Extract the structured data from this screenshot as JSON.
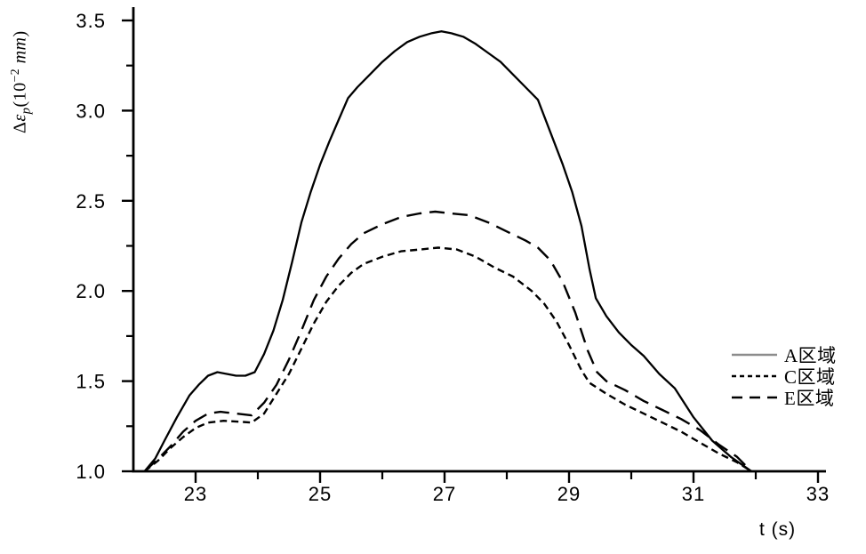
{
  "colors": {
    "background": "#ffffff",
    "axis": "#000000",
    "text": "#000000",
    "curve": "#000000",
    "legend_solid_sample": "#8c8c8c"
  },
  "labels": {
    "y_prefix": "Δ",
    "y_epsilon": "ε",
    "y_subscript": "p",
    "y_open": "(10",
    "y_superscript": "−2",
    "y_space": " ",
    "y_unit": "mm",
    "y_close": ")",
    "y_full": "Δεp(10−2 mm)"
  },
  "chart_data": {
    "type": "line",
    "title": "",
    "xlabel": "t (s)",
    "ylabel": "Δεp(10−2 mm)",
    "xlim": [
      22,
      33
    ],
    "ylim": [
      1.0,
      3.5
    ],
    "grid": false,
    "legend_position": "right-middle",
    "x_ticks_major": [
      23,
      25,
      27,
      29,
      31,
      33
    ],
    "x_tick_labels": [
      "23",
      "25",
      "27",
      "29",
      "31",
      "33"
    ],
    "x_ticks_minor": [
      24,
      26,
      28,
      30,
      32
    ],
    "y_ticks_major": [
      1.0,
      1.5,
      2.0,
      2.5,
      3.0,
      3.5
    ],
    "y_tick_labels": [
      "1.0",
      "1.5",
      "2.0",
      "2.5",
      "3.0",
      "3.5"
    ],
    "y_ticks_minor": [
      1.25,
      1.75,
      2.25,
      2.75,
      3.25
    ],
    "series": [
      {
        "name": "A区域",
        "line_style": "solid",
        "color": "#000000",
        "stroke_width": 2.3,
        "curve_dash": "",
        "legend_dash": "",
        "legend_sample_color": "#8c8c8c",
        "peak": [
          26.9,
          3.44
        ],
        "points": [
          [
            22.18,
            1.0
          ],
          [
            22.35,
            1.07
          ],
          [
            22.5,
            1.17
          ],
          [
            22.7,
            1.3
          ],
          [
            22.9,
            1.42
          ],
          [
            23.05,
            1.48
          ],
          [
            23.2,
            1.53
          ],
          [
            23.35,
            1.55
          ],
          [
            23.5,
            1.54
          ],
          [
            23.65,
            1.53
          ],
          [
            23.8,
            1.53
          ],
          [
            23.95,
            1.55
          ],
          [
            24.1,
            1.65
          ],
          [
            24.25,
            1.78
          ],
          [
            24.4,
            1.95
          ],
          [
            24.55,
            2.16
          ],
          [
            24.7,
            2.38
          ],
          [
            24.85,
            2.55
          ],
          [
            25.0,
            2.7
          ],
          [
            25.15,
            2.83
          ],
          [
            25.3,
            2.95
          ],
          [
            25.45,
            3.07
          ],
          [
            25.6,
            3.13
          ],
          [
            25.8,
            3.2
          ],
          [
            26.0,
            3.27
          ],
          [
            26.2,
            3.33
          ],
          [
            26.4,
            3.38
          ],
          [
            26.6,
            3.41
          ],
          [
            26.8,
            3.43
          ],
          [
            26.95,
            3.44
          ],
          [
            27.1,
            3.43
          ],
          [
            27.3,
            3.41
          ],
          [
            27.5,
            3.37
          ],
          [
            27.7,
            3.32
          ],
          [
            27.9,
            3.27
          ],
          [
            28.1,
            3.2
          ],
          [
            28.3,
            3.13
          ],
          [
            28.5,
            3.06
          ],
          [
            28.7,
            2.88
          ],
          [
            28.9,
            2.7
          ],
          [
            29.05,
            2.55
          ],
          [
            29.2,
            2.36
          ],
          [
            29.33,
            2.12
          ],
          [
            29.43,
            1.96
          ],
          [
            29.6,
            1.86
          ],
          [
            29.8,
            1.77
          ],
          [
            30.0,
            1.7
          ],
          [
            30.2,
            1.64
          ],
          [
            30.45,
            1.54
          ],
          [
            30.7,
            1.46
          ],
          [
            31.0,
            1.3
          ],
          [
            31.3,
            1.17
          ],
          [
            31.6,
            1.08
          ],
          [
            31.93,
            1.0
          ]
        ]
      },
      {
        "name": "C区域",
        "line_style": "short-dash",
        "color": "#000000",
        "stroke_width": 2.4,
        "curve_dash": "8 5",
        "legend_dash": "5 4",
        "legend_sample_color": "#000000",
        "peak": [
          26.9,
          2.24
        ],
        "points": [
          [
            22.18,
            1.0
          ],
          [
            22.4,
            1.06
          ],
          [
            22.6,
            1.13
          ],
          [
            22.8,
            1.19
          ],
          [
            23.0,
            1.24
          ],
          [
            23.2,
            1.27
          ],
          [
            23.45,
            1.28
          ],
          [
            23.7,
            1.275
          ],
          [
            23.9,
            1.27
          ],
          [
            24.1,
            1.32
          ],
          [
            24.3,
            1.43
          ],
          [
            24.5,
            1.54
          ],
          [
            24.7,
            1.68
          ],
          [
            24.9,
            1.82
          ],
          [
            25.1,
            1.94
          ],
          [
            25.3,
            2.03
          ],
          [
            25.5,
            2.1
          ],
          [
            25.7,
            2.15
          ],
          [
            26.0,
            2.19
          ],
          [
            26.3,
            2.22
          ],
          [
            26.6,
            2.23
          ],
          [
            26.9,
            2.24
          ],
          [
            27.2,
            2.23
          ],
          [
            27.5,
            2.19
          ],
          [
            27.8,
            2.13
          ],
          [
            28.1,
            2.08
          ],
          [
            28.4,
            2.0
          ],
          [
            28.6,
            1.93
          ],
          [
            28.8,
            1.83
          ],
          [
            29.0,
            1.7
          ],
          [
            29.2,
            1.56
          ],
          [
            29.33,
            1.49
          ],
          [
            29.6,
            1.43
          ],
          [
            29.9,
            1.37
          ],
          [
            30.2,
            1.32
          ],
          [
            30.5,
            1.27
          ],
          [
            30.8,
            1.22
          ],
          [
            31.1,
            1.16
          ],
          [
            31.4,
            1.1
          ],
          [
            31.7,
            1.05
          ],
          [
            31.93,
            1.0
          ]
        ]
      },
      {
        "name": "E区域",
        "line_style": "long-dash",
        "color": "#000000",
        "stroke_width": 2.4,
        "curve_dash": "17 9",
        "legend_dash": "12 8",
        "legend_sample_color": "#000000",
        "peak": [
          26.85,
          2.44
        ],
        "points": [
          [
            22.18,
            1.0
          ],
          [
            22.4,
            1.07
          ],
          [
            22.6,
            1.14
          ],
          [
            22.8,
            1.22
          ],
          [
            23.0,
            1.28
          ],
          [
            23.2,
            1.32
          ],
          [
            23.4,
            1.33
          ],
          [
            23.65,
            1.32
          ],
          [
            23.9,
            1.31
          ],
          [
            24.1,
            1.38
          ],
          [
            24.3,
            1.48
          ],
          [
            24.5,
            1.62
          ],
          [
            24.7,
            1.78
          ],
          [
            24.9,
            1.95
          ],
          [
            25.1,
            2.08
          ],
          [
            25.3,
            2.18
          ],
          [
            25.5,
            2.26
          ],
          [
            25.7,
            2.32
          ],
          [
            26.0,
            2.37
          ],
          [
            26.3,
            2.41
          ],
          [
            26.6,
            2.43
          ],
          [
            26.85,
            2.44
          ],
          [
            27.1,
            2.43
          ],
          [
            27.4,
            2.42
          ],
          [
            27.7,
            2.38
          ],
          [
            28.0,
            2.33
          ],
          [
            28.3,
            2.28
          ],
          [
            28.5,
            2.24
          ],
          [
            28.7,
            2.17
          ],
          [
            28.9,
            2.05
          ],
          [
            29.1,
            1.88
          ],
          [
            29.3,
            1.67
          ],
          [
            29.45,
            1.55
          ],
          [
            29.6,
            1.5
          ],
          [
            29.9,
            1.45
          ],
          [
            30.2,
            1.39
          ],
          [
            30.5,
            1.34
          ],
          [
            30.8,
            1.29
          ],
          [
            31.1,
            1.23
          ],
          [
            31.4,
            1.15
          ],
          [
            31.7,
            1.08
          ],
          [
            31.93,
            1.0
          ]
        ]
      }
    ]
  },
  "legend": {
    "items": [
      {
        "label": "A区域",
        "line": "solid"
      },
      {
        "label": "C区域",
        "line": "short-dash"
      },
      {
        "label": "E区域",
        "line": "long-dash"
      }
    ]
  }
}
